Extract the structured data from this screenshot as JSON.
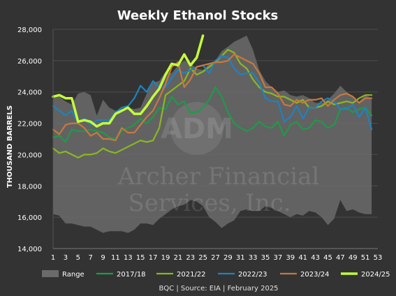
{
  "chart_data": {
    "type": "line",
    "title": "Weekly Ethanol Stocks",
    "ylabel": "THOUSAND BARRELS",
    "xlabel": "",
    "source": "BQC | Source: EIA | February 2025",
    "watermark": {
      "logo": "ADM",
      "line1": "Archer Financial",
      "line2": "Services, Inc."
    },
    "x_ticks": [
      1,
      3,
      5,
      7,
      9,
      11,
      13,
      15,
      17,
      19,
      21,
      23,
      25,
      27,
      29,
      31,
      33,
      35,
      37,
      39,
      41,
      43,
      45,
      47,
      49,
      51,
      53
    ],
    "y_ticks": [
      14000,
      16000,
      18000,
      20000,
      22000,
      24000,
      26000,
      28000
    ],
    "y_tick_labels": [
      "14,000",
      "16,000",
      "18,000",
      "20,000",
      "22,000",
      "24,000",
      "26,000",
      "28,000"
    ],
    "xlim": [
      1,
      53
    ],
    "ylim": [
      14000,
      28000
    ],
    "grid": "horizontal",
    "legend_position": "bottom",
    "range": {
      "name": "Range",
      "color": "#6b6b6b",
      "x": [
        1,
        2,
        3,
        4,
        5,
        6,
        7,
        8,
        9,
        10,
        11,
        12,
        13,
        14,
        15,
        16,
        17,
        18,
        19,
        20,
        21,
        22,
        23,
        24,
        25,
        26,
        27,
        28,
        29,
        30,
        31,
        32,
        33,
        34,
        35,
        36,
        37,
        38,
        39,
        40,
        41,
        42,
        43,
        44,
        45,
        46,
        47,
        48,
        49,
        50,
        51,
        52
      ],
      "max": [
        23800,
        23700,
        23400,
        23200,
        23900,
        24000,
        23800,
        22500,
        23500,
        23000,
        22800,
        22900,
        23000,
        22900,
        23000,
        23900,
        24600,
        24700,
        25300,
        25200,
        25700,
        26000,
        25800,
        25500,
        25400,
        25800,
        26000,
        26600,
        26900,
        27200,
        27400,
        27600,
        26700,
        25400,
        24700,
        24300,
        24000,
        24100,
        23800,
        23700,
        23800,
        23600,
        23300,
        23300,
        23500,
        23900,
        24400,
        24000,
        23700,
        23400,
        23800,
        23600
      ],
      "min": [
        16200,
        16100,
        15600,
        15600,
        15500,
        15400,
        15400,
        15200,
        15000,
        15100,
        15100,
        15100,
        15000,
        15200,
        15600,
        15600,
        15500,
        15900,
        16200,
        16500,
        16700,
        16800,
        17100,
        17000,
        16700,
        16000,
        15700,
        15300,
        15600,
        15800,
        16400,
        16500,
        16400,
        16400,
        16700,
        16600,
        16400,
        16200,
        16000,
        16200,
        16100,
        16400,
        16300,
        16000,
        15500,
        15900,
        17100,
        16400,
        16500,
        16300,
        16200,
        16200
      ]
    },
    "series": [
      {
        "name": "2017/18",
        "color": "#1f9a4a",
        "x": [
          1,
          2,
          3,
          4,
          5,
          6,
          7,
          8,
          9,
          10,
          11,
          12,
          13,
          14,
          15,
          16,
          17,
          18,
          19,
          20,
          21,
          22,
          23,
          24,
          25,
          26,
          27,
          28,
          29,
          30,
          31,
          32,
          33,
          34,
          35,
          36,
          37,
          38,
          39,
          40,
          41,
          42,
          43,
          44,
          45,
          46,
          47,
          48,
          49,
          50,
          51,
          52
        ],
        "y": [
          21100,
          21200,
          20800,
          21600,
          21500,
          21500,
          21600,
          21500,
          21400,
          21100,
          21000,
          21500,
          21700,
          21900,
          22300,
          22000,
          22400,
          23000,
          22900,
          23700,
          23200,
          23400,
          22700,
          22700,
          23000,
          23500,
          24300,
          23700,
          22700,
          22000,
          21700,
          21500,
          21700,
          22100,
          21800,
          21700,
          22100,
          21200,
          21900,
          22100,
          21600,
          21700,
          22200,
          22100,
          21700,
          21900,
          22900,
          23000,
          22700,
          22900,
          23000,
          22500
        ]
      },
      {
        "name": "2021/22",
        "color": "#8ab820",
        "x": [
          1,
          2,
          3,
          4,
          5,
          6,
          7,
          8,
          9,
          10,
          11,
          12,
          13,
          14,
          15,
          16,
          17,
          18,
          19,
          20,
          21,
          22,
          23,
          24,
          25,
          26,
          27,
          28,
          29,
          30,
          31,
          32,
          33,
          34,
          35,
          36,
          37,
          38,
          39,
          40,
          41,
          42,
          43,
          44,
          45,
          46,
          47,
          48,
          49,
          50,
          51,
          52
        ],
        "y": [
          20400,
          20100,
          20200,
          20000,
          19800,
          20000,
          20000,
          20100,
          20400,
          20200,
          20100,
          20300,
          20500,
          20700,
          20900,
          20800,
          20900,
          21700,
          23800,
          24100,
          24400,
          24700,
          25500,
          25100,
          25300,
          25600,
          25900,
          26300,
          26700,
          26500,
          25800,
          25500,
          24800,
          24300,
          24000,
          23900,
          23700,
          23700,
          23500,
          23300,
          23500,
          23000,
          23000,
          23100,
          23400,
          23200,
          23300,
          23400,
          23300,
          23600,
          23800,
          23800
        ]
      },
      {
        "name": "2022/23",
        "color": "#1f82c0",
        "x": [
          1,
          2,
          3,
          4,
          5,
          6,
          7,
          8,
          9,
          10,
          11,
          12,
          13,
          14,
          15,
          16,
          17,
          18,
          19,
          20,
          21,
          22,
          23,
          24,
          25,
          26,
          27,
          28,
          29,
          30,
          31,
          32,
          33,
          34,
          35,
          36,
          37,
          38,
          39,
          40,
          41,
          42,
          43,
          44,
          45,
          46,
          47,
          48,
          49,
          50,
          51,
          52
        ],
        "y": [
          23100,
          22800,
          22500,
          22800,
          22000,
          22300,
          21900,
          22200,
          22200,
          22200,
          22700,
          23000,
          23100,
          23600,
          24400,
          24000,
          24700,
          24300,
          24300,
          24900,
          25400,
          25200,
          25400,
          25600,
          25700,
          25200,
          26000,
          26300,
          26200,
          25500,
          25100,
          25200,
          25200,
          24600,
          23600,
          23400,
          23400,
          22100,
          22400,
          23100,
          22300,
          23000,
          23000,
          23400,
          23600,
          23400,
          22900,
          22900,
          23200,
          22400,
          23000,
          21600
        ]
      },
      {
        "name": "2023/24",
        "color": "#c8783c",
        "x": [
          1,
          2,
          3,
          4,
          5,
          6,
          7,
          8,
          9,
          10,
          11,
          12,
          13,
          14,
          15,
          16,
          17,
          18,
          19,
          20,
          21,
          22,
          23,
          24,
          25,
          26,
          27,
          28,
          29,
          30,
          31,
          32,
          33,
          34,
          35,
          36,
          37,
          38,
          39,
          40,
          41,
          42,
          43,
          44,
          45,
          46,
          47,
          48,
          49,
          50,
          51,
          52
        ],
        "y": [
          21600,
          21300,
          21900,
          22000,
          22000,
          21700,
          21200,
          21400,
          21000,
          21000,
          20900,
          21700,
          21400,
          21400,
          21900,
          22400,
          22800,
          23600,
          24500,
          25600,
          25900,
          24300,
          24800,
          25600,
          25700,
          25800,
          25900,
          25900,
          26000,
          26400,
          26200,
          26000,
          25800,
          25200,
          24300,
          24300,
          23900,
          23200,
          23100,
          23500,
          23300,
          23500,
          23500,
          23600,
          23100,
          23500,
          23800,
          23900,
          23700,
          23300,
          23600,
          23600
        ]
      },
      {
        "name": "2024/25",
        "color": "#c4ff3a",
        "x": [
          1,
          2,
          3,
          4,
          5,
          6,
          7,
          8,
          9,
          10,
          11,
          12,
          13,
          14,
          15,
          16,
          17,
          18,
          19,
          20,
          21,
          22,
          23,
          24,
          25
        ],
        "y": [
          23700,
          23800,
          23600,
          23600,
          22100,
          22200,
          22100,
          21800,
          22000,
          22000,
          22600,
          22800,
          23000,
          22600,
          22600,
          23100,
          23700,
          24200,
          25100,
          25800,
          25700,
          26400,
          25700,
          26200,
          27600
        ]
      }
    ]
  }
}
